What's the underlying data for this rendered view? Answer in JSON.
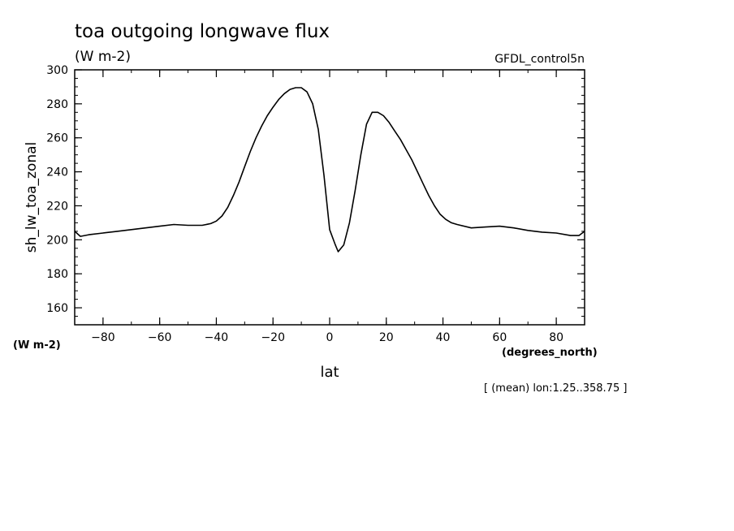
{
  "chart_data": {
    "type": "line",
    "title": "toa outgoing longwave flux",
    "units": "(W m-2)",
    "dataset": "GFDL_control5n",
    "ylabel": "sh_lw_toa_zonal",
    "yunits": "(W m-2)",
    "xlabel": "lat",
    "xunits": "(degrees_north)",
    "footnote": "[ (mean) lon:1.25..358.75 ]",
    "xlim": [
      -90,
      90
    ],
    "ylim": [
      150,
      300
    ],
    "xticks": [
      -80,
      -60,
      -40,
      -20,
      0,
      20,
      40,
      60,
      80
    ],
    "yticks": [
      160,
      180,
      200,
      220,
      240,
      260,
      280,
      300
    ],
    "grid": false,
    "series": [
      {
        "color": "#000000",
        "x": [
          -90,
          -88,
          -85,
          -80,
          -75,
          -70,
          -65,
          -60,
          -55,
          -50,
          -45,
          -42,
          -40,
          -38,
          -36,
          -34,
          -32,
          -30,
          -28,
          -26,
          -24,
          -22,
          -20,
          -18,
          -16,
          -14,
          -12,
          -10,
          -8,
          -6,
          -4,
          -2,
          0,
          2,
          3,
          5,
          7,
          9,
          11,
          13,
          15,
          17,
          19,
          21,
          23,
          25,
          27,
          29,
          31,
          33,
          35,
          37,
          39,
          41,
          43,
          45,
          50,
          55,
          60,
          65,
          70,
          75,
          80,
          85,
          88,
          90
        ],
        "values": [
          205,
          202,
          203,
          204,
          205,
          206,
          207,
          208,
          209,
          208.5,
          208.5,
          209.5,
          211,
          214,
          219,
          226,
          234,
          243,
          252,
          260,
          267,
          273,
          278,
          282.5,
          286,
          288.5,
          289.5,
          289.5,
          287,
          280,
          265,
          238,
          206,
          197,
          193,
          197,
          210,
          229,
          250,
          268,
          275,
          275,
          273,
          269,
          264,
          259,
          253,
          247,
          240,
          233,
          226,
          220,
          215,
          212,
          210,
          209,
          207,
          207.5,
          208,
          207,
          205.5,
          204.5,
          204,
          202.5,
          202.5,
          205
        ]
      }
    ]
  }
}
